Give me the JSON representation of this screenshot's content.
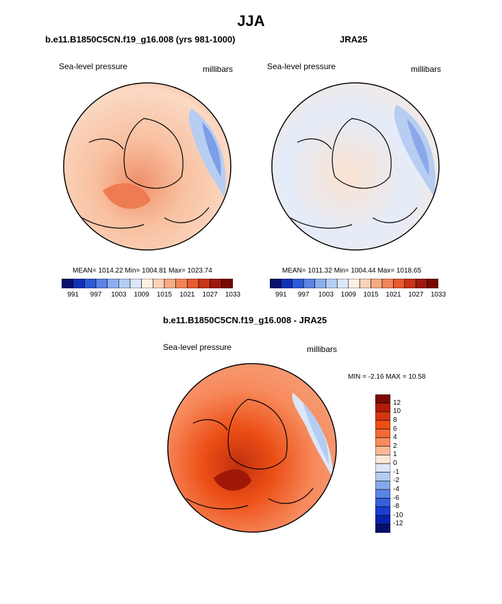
{
  "page_title": "JJA",
  "panels": [
    {
      "title": "b.e11.B1850C5CN.f19_g16.008 (yrs 981-1000)",
      "variable": "Sea-level pressure",
      "units": "millibars",
      "stats": "MEAN= 1014.22  Min= 1004.81  Max= 1023.74"
    },
    {
      "title": "JRA25",
      "variable": "Sea-level pressure",
      "units": "millibars",
      "stats": "MEAN= 1011.32  Min= 1004.44  Max= 1018.65"
    },
    {
      "title": "b.e11.B1850C5CN.f19_g16.008 - JRA25",
      "variable": "Sea-level pressure",
      "units": "millibars",
      "stats": "MIN =  -2.16 MAX =  10.58"
    }
  ],
  "colorbar_abs": {
    "labels": [
      "991",
      "997",
      "1003",
      "1009",
      "1015",
      "1021",
      "1027",
      "1033"
    ],
    "colors": [
      "#08106e",
      "#1030b8",
      "#2e5ad8",
      "#5a84e6",
      "#8caeee",
      "#b6cef4",
      "#dce8fa",
      "#fff0e4",
      "#fcd2b8",
      "#f8aa84",
      "#f2845a",
      "#e65a30",
      "#ca3418",
      "#a0180c",
      "#780800"
    ]
  },
  "colorbar_diff": {
    "labels": [
      "12",
      "10",
      "8",
      "6",
      "4",
      "2",
      "1",
      "0",
      "-1",
      "-2",
      "-4",
      "-6",
      "-8",
      "-10",
      "-12"
    ],
    "colors": [
      "#7a0a02",
      "#b01c08",
      "#d2360e",
      "#ec4e16",
      "#f46a32",
      "#f88c5e",
      "#fcb896",
      "#fde8d8",
      "#dce6f8",
      "#b4ccf2",
      "#86a8ea",
      "#5a84e2",
      "#3460dc",
      "#1a3ed2",
      "#0a22a8",
      "#06106a"
    ]
  }
}
